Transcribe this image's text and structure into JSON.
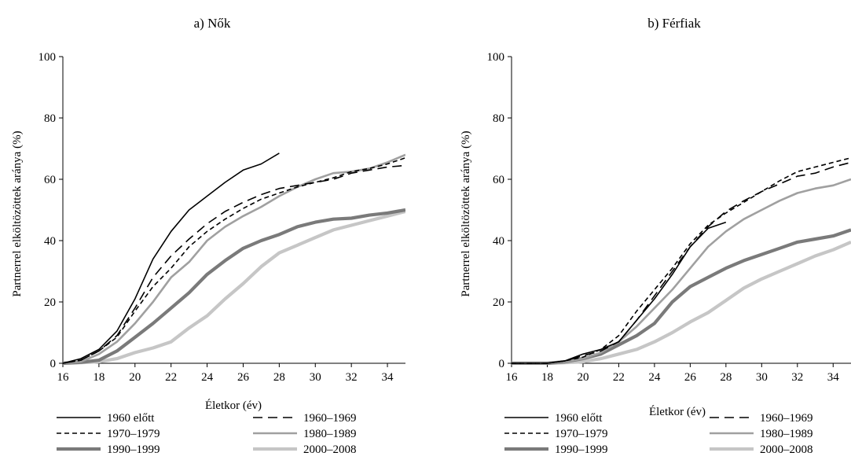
{
  "chart_data": [
    {
      "type": "line",
      "title": "a) Nők",
      "xlabel": "Életkor  (év)",
      "ylabel": "Partnerrel elköltözöttek aránya (%)",
      "xlim": [
        16,
        35
      ],
      "ylim": [
        0,
        100
      ],
      "xticks": [
        16,
        18,
        20,
        22,
        24,
        26,
        28,
        30,
        32,
        34
      ],
      "yticks": [
        0,
        20,
        40,
        60,
        80,
        100
      ],
      "grid": false,
      "legend": "bottom",
      "series": [
        {
          "name": "1960 előtt",
          "color": "#000000",
          "width": 1.6,
          "dash": "",
          "x": [
            16,
            17,
            18,
            19,
            20,
            21,
            22,
            23,
            24,
            25,
            26,
            27,
            28
          ],
          "y": [
            0,
            1.5,
            4.5,
            10.5,
            21,
            34,
            43,
            50,
            54.5,
            59,
            63,
            65,
            68.5
          ]
        },
        {
          "name": "1960–1969",
          "color": "#000000",
          "width": 1.6,
          "dash": "12,7",
          "x": [
            16,
            17,
            18,
            19,
            20,
            21,
            22,
            23,
            24,
            25,
            26,
            27,
            28,
            29,
            30,
            31,
            32,
            33,
            34,
            35
          ],
          "y": [
            0,
            1,
            4,
            9,
            18,
            28,
            35,
            40.5,
            45.5,
            49.5,
            52.5,
            55,
            57,
            58,
            59,
            60,
            62,
            63,
            64,
            64.5
          ]
        },
        {
          "name": "1970–1979",
          "color": "#000000",
          "width": 1.6,
          "dash": "6,4",
          "x": [
            16,
            17,
            18,
            19,
            20,
            21,
            22,
            23,
            24,
            25,
            26,
            27,
            28,
            29,
            30,
            31,
            32,
            33,
            34,
            35
          ],
          "y": [
            0,
            1,
            4,
            8.5,
            17,
            25,
            31,
            38,
            43,
            47,
            50.5,
            53.5,
            55.5,
            57.5,
            59,
            60.5,
            62.5,
            63.5,
            65,
            67
          ]
        },
        {
          "name": "1980–1989",
          "color": "#a0a0a0",
          "width": 2.6,
          "dash": "",
          "x": [
            16,
            17,
            18,
            19,
            20,
            21,
            22,
            23,
            24,
            25,
            26,
            27,
            28,
            29,
            30,
            31,
            32,
            33,
            34,
            35
          ],
          "y": [
            0,
            0.5,
            3,
            7,
            13,
            20,
            28,
            33,
            40,
            44.5,
            48,
            51,
            54.5,
            57.5,
            60,
            62,
            62.5,
            63.5,
            65.5,
            68
          ]
        },
        {
          "name": "1990–1999",
          "color": "#7a7a7a",
          "width": 4.2,
          "dash": "",
          "x": [
            16,
            17,
            18,
            19,
            20,
            21,
            22,
            23,
            24,
            25,
            26,
            27,
            28,
            29,
            30,
            31,
            32,
            33,
            34,
            35
          ],
          "y": [
            0,
            0.3,
            1,
            4,
            8.5,
            13,
            18,
            23,
            29,
            33.5,
            37.5,
            40,
            42,
            44.5,
            46,
            47,
            47.3,
            48.3,
            49,
            50
          ]
        },
        {
          "name": "2000–2008",
          "color": "#c6c6c6",
          "width": 4.2,
          "dash": "",
          "x": [
            16,
            17,
            18,
            19,
            20,
            21,
            22,
            23,
            24,
            25,
            26,
            27,
            28,
            29,
            30,
            31,
            32,
            33,
            34,
            35
          ],
          "y": [
            0,
            0.2,
            0.5,
            1.5,
            3.5,
            5,
            7,
            11.5,
            15.5,
            21,
            26,
            31.5,
            36,
            38.5,
            41,
            43.5,
            45,
            46.5,
            48,
            49.5
          ]
        }
      ]
    },
    {
      "type": "line",
      "title": "b) Férfiak",
      "xlabel": "Életkor  (év)",
      "ylabel": "Partnerrel elköltözöttek aránya (%)",
      "xlim": [
        16,
        35
      ],
      "ylim": [
        0,
        100
      ],
      "xticks": [
        16,
        18,
        20,
        22,
        24,
        26,
        28,
        30,
        32,
        34
      ],
      "yticks": [
        0,
        20,
        40,
        60,
        80,
        100
      ],
      "grid": false,
      "legend": "bottom",
      "series": [
        {
          "name": "1960 előtt",
          "color": "#000000",
          "width": 1.6,
          "dash": "",
          "x": [
            16,
            17,
            18,
            19,
            20,
            21,
            22,
            23,
            24,
            25,
            26,
            27,
            28
          ],
          "y": [
            0,
            0,
            0,
            0.8,
            3,
            4.5,
            7,
            14,
            21,
            29,
            38,
            44,
            46
          ]
        },
        {
          "name": "1960–1969",
          "color": "#000000",
          "width": 1.6,
          "dash": "12,7",
          "x": [
            16,
            17,
            18,
            19,
            20,
            21,
            22,
            23,
            24,
            25,
            26,
            27,
            28,
            29,
            30,
            31,
            32,
            33,
            34,
            35
          ],
          "y": [
            0,
            0,
            0,
            0.8,
            2.5,
            4,
            7,
            14,
            22,
            30,
            38,
            44.5,
            49.5,
            53,
            56,
            58.5,
            61,
            62,
            64,
            65.5
          ]
        },
        {
          "name": "1970–1979",
          "color": "#000000",
          "width": 1.6,
          "dash": "6,4",
          "x": [
            16,
            17,
            18,
            19,
            20,
            21,
            22,
            23,
            24,
            25,
            26,
            27,
            28,
            29,
            30,
            31,
            32,
            33,
            34,
            35
          ],
          "y": [
            0,
            0,
            0,
            0.8,
            2,
            4.5,
            9,
            17,
            24,
            31,
            39,
            45,
            49,
            52.5,
            56,
            59.5,
            62.5,
            64,
            65.5,
            67
          ]
        },
        {
          "name": "1980–1989",
          "color": "#a0a0a0",
          "width": 2.6,
          "dash": "",
          "x": [
            16,
            17,
            18,
            19,
            20,
            21,
            22,
            23,
            24,
            25,
            26,
            27,
            28,
            29,
            30,
            31,
            32,
            33,
            34,
            35
          ],
          "y": [
            0,
            0,
            0,
            0.5,
            1.5,
            3.5,
            7,
            12,
            18,
            24,
            31,
            38,
            43,
            47,
            50,
            53,
            55.5,
            57,
            58,
            60
          ]
        },
        {
          "name": "1990–1999",
          "color": "#7a7a7a",
          "width": 4.2,
          "dash": "",
          "x": [
            16,
            17,
            18,
            19,
            20,
            21,
            22,
            23,
            24,
            25,
            26,
            27,
            28,
            29,
            30,
            31,
            32,
            33,
            34,
            35
          ],
          "y": [
            0,
            0,
            0,
            0.5,
            1.5,
            3,
            6,
            9,
            13,
            20,
            25,
            28,
            31,
            33.5,
            35.5,
            37.5,
            39.5,
            40.5,
            41.5,
            43.5
          ]
        },
        {
          "name": "2000–2008",
          "color": "#c6c6c6",
          "width": 4.2,
          "dash": "",
          "x": [
            16,
            17,
            18,
            19,
            20,
            21,
            22,
            23,
            24,
            25,
            26,
            27,
            28,
            29,
            30,
            31,
            32,
            33,
            34,
            35
          ],
          "y": [
            0,
            0,
            0,
            0.2,
            0.5,
            1.5,
            3,
            4.5,
            7,
            10,
            13.5,
            16.5,
            20.5,
            24.5,
            27.5,
            30,
            32.5,
            35,
            37,
            39.5
          ]
        }
      ]
    }
  ]
}
